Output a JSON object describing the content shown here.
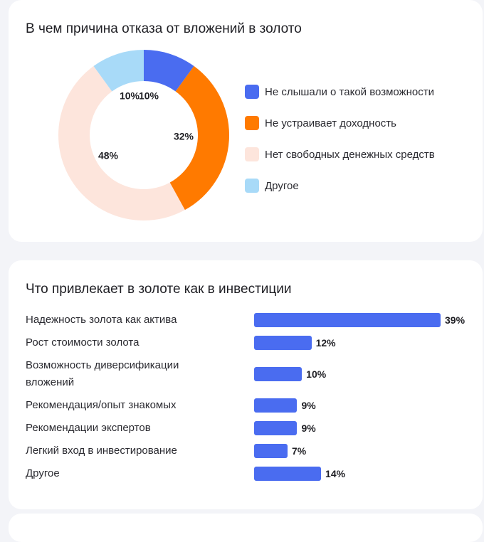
{
  "chart_data": [
    {
      "type": "pie",
      "title": "В чем причина отказа от вложений в золото",
      "categories": [
        "Не слышали о такой возможности",
        "Не устраивает доходность",
        "Нет свободных денежных средств",
        "Другое"
      ],
      "values": [
        10,
        32,
        48,
        10
      ],
      "value_labels": [
        "10%",
        "32%",
        "48%",
        "10%"
      ],
      "colors": [
        "#4a6cf0",
        "#ff7a00",
        "#fde5dc",
        "#a8daf8"
      ],
      "hole": true,
      "legend_position": "right"
    },
    {
      "type": "bar",
      "orientation": "horizontal",
      "title": "Что привлекает в золоте как в инвестиции",
      "categories": [
        "Надежность золота как актива",
        "Рост стоимости золота",
        "Возможность диверсификации вложений",
        "Рекомендация/опыт знакомых",
        "Рекомендации экспертов",
        "Легкий вход в инвестирование",
        "Другое"
      ],
      "values": [
        39,
        12,
        10,
        9,
        9,
        7,
        14
      ],
      "value_labels": [
        "39%",
        "12%",
        "10%",
        "9%",
        "9%",
        "7%",
        "14%"
      ],
      "color": "#4a6cf0",
      "xlim": [
        0,
        39
      ]
    }
  ]
}
